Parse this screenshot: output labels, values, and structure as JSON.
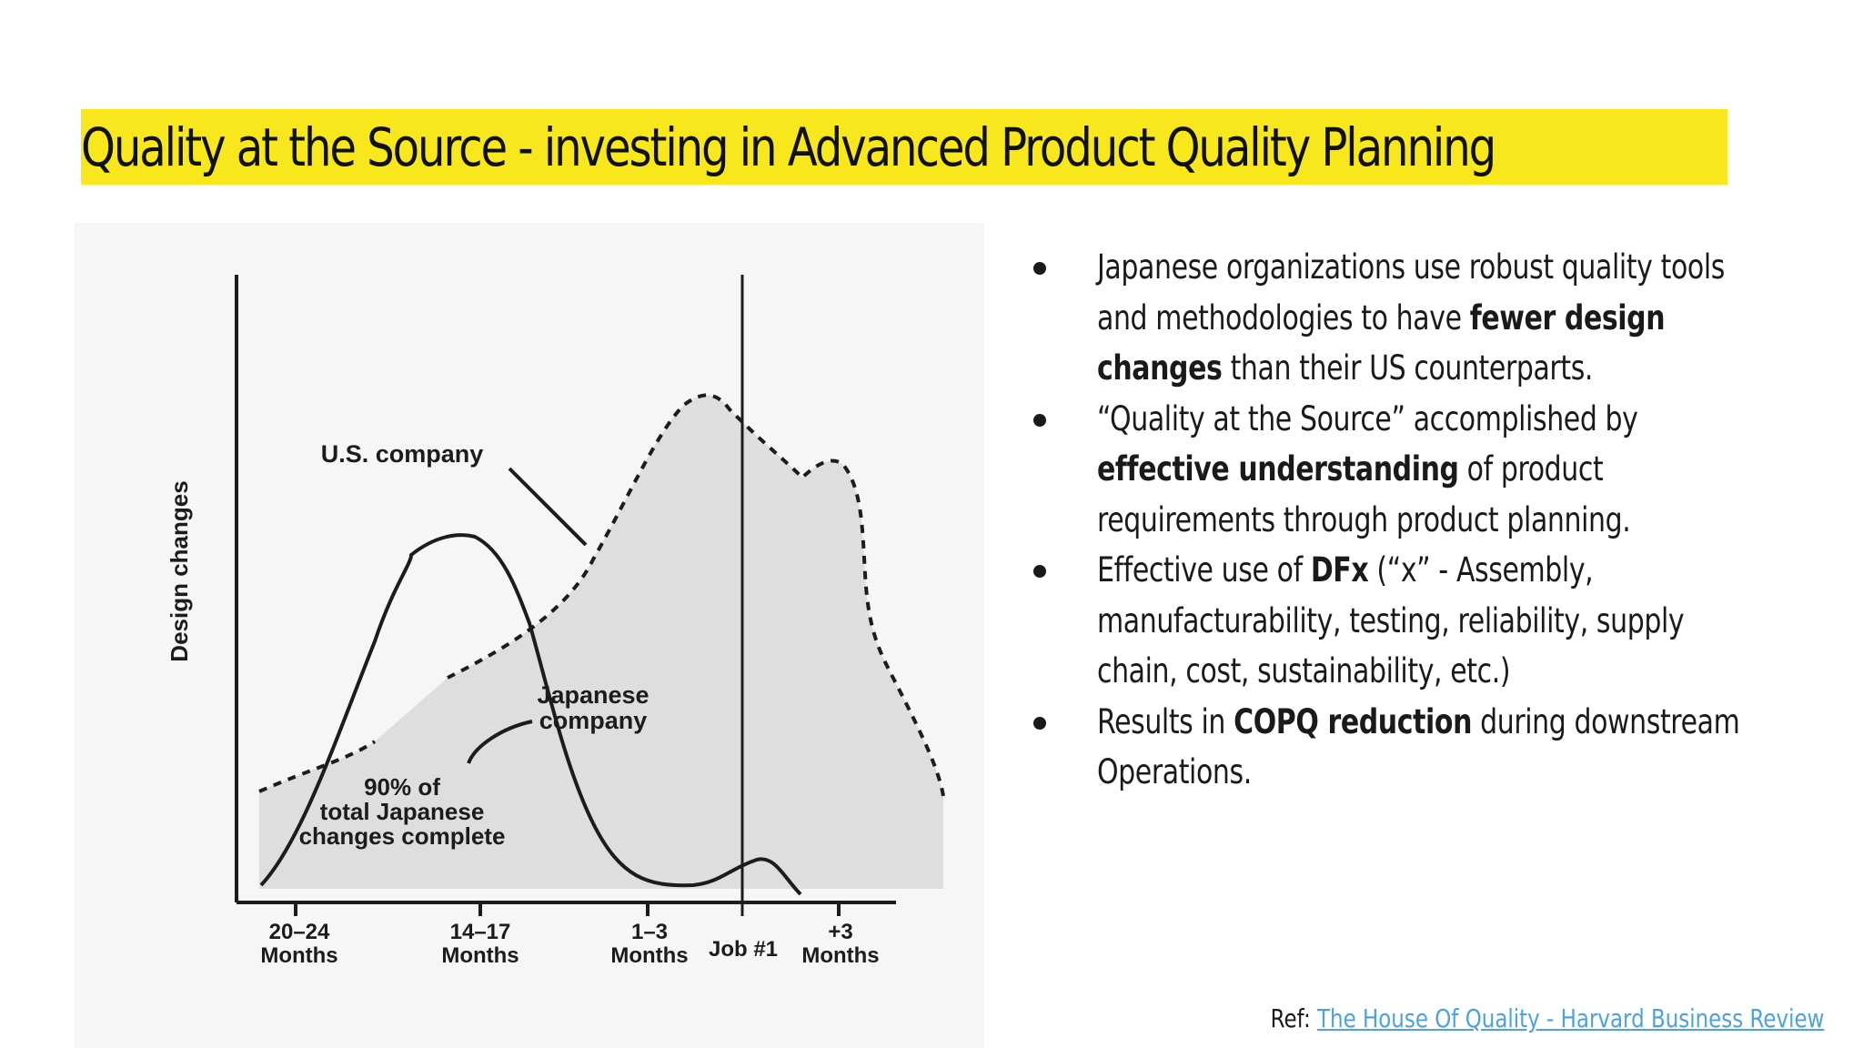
{
  "slide": {
    "title": "Quality at the Source - investing in Advanced Product Quality Planning",
    "title_highlight_color": "#f8e71c"
  },
  "diagram": {
    "y_axis_label": "Design changes",
    "us_label": "U.S. company",
    "japanese_label_line1": "Japanese",
    "japanese_label_line2": "company",
    "note_line1": "90% of",
    "note_line2": "total Japanese",
    "note_line3": "changes complete",
    "ticks": [
      {
        "line1": "20–24",
        "line2": "Months"
      },
      {
        "line1": "14–17",
        "line2": "Months"
      },
      {
        "line1": "1–3",
        "line2": "Months"
      },
      {
        "line1": "Job #1",
        "line2": ""
      },
      {
        "line1": "+3",
        "line2": "Months"
      }
    ],
    "fill_color": "#dedede"
  },
  "bullets": [
    {
      "segments": [
        {
          "text": "Japanese organizations use robust quality tools and methodologies to have ",
          "bold": false
        },
        {
          "text": "fewer design changes",
          "bold": true
        },
        {
          "text": " than their US counterparts.",
          "bold": false
        }
      ]
    },
    {
      "segments": [
        {
          "text": "“Quality at the Source” accomplished by ",
          "bold": false
        },
        {
          "text": "effective understanding",
          "bold": true
        },
        {
          "text": " of product requirements through product planning.",
          "bold": false
        }
      ]
    },
    {
      "segments": [
        {
          "text": "Effective use of ",
          "bold": false
        },
        {
          "text": "DFx",
          "bold": true
        },
        {
          "text": " (“x” - Assembly, manufacturability, testing, reliability, supply chain, cost, sustainability, etc.)",
          "bold": false
        }
      ]
    },
    {
      "segments": [
        {
          "text": "Results in ",
          "bold": false
        },
        {
          "text": "COPQ reduction",
          "bold": true
        },
        {
          "text": " during downstream Operations.",
          "bold": false
        }
      ]
    }
  ],
  "reference": {
    "prefix": "Ref: ",
    "link_text": "The House Of Quality - Harvard Business Review",
    "link_color": "#4aa3df"
  }
}
